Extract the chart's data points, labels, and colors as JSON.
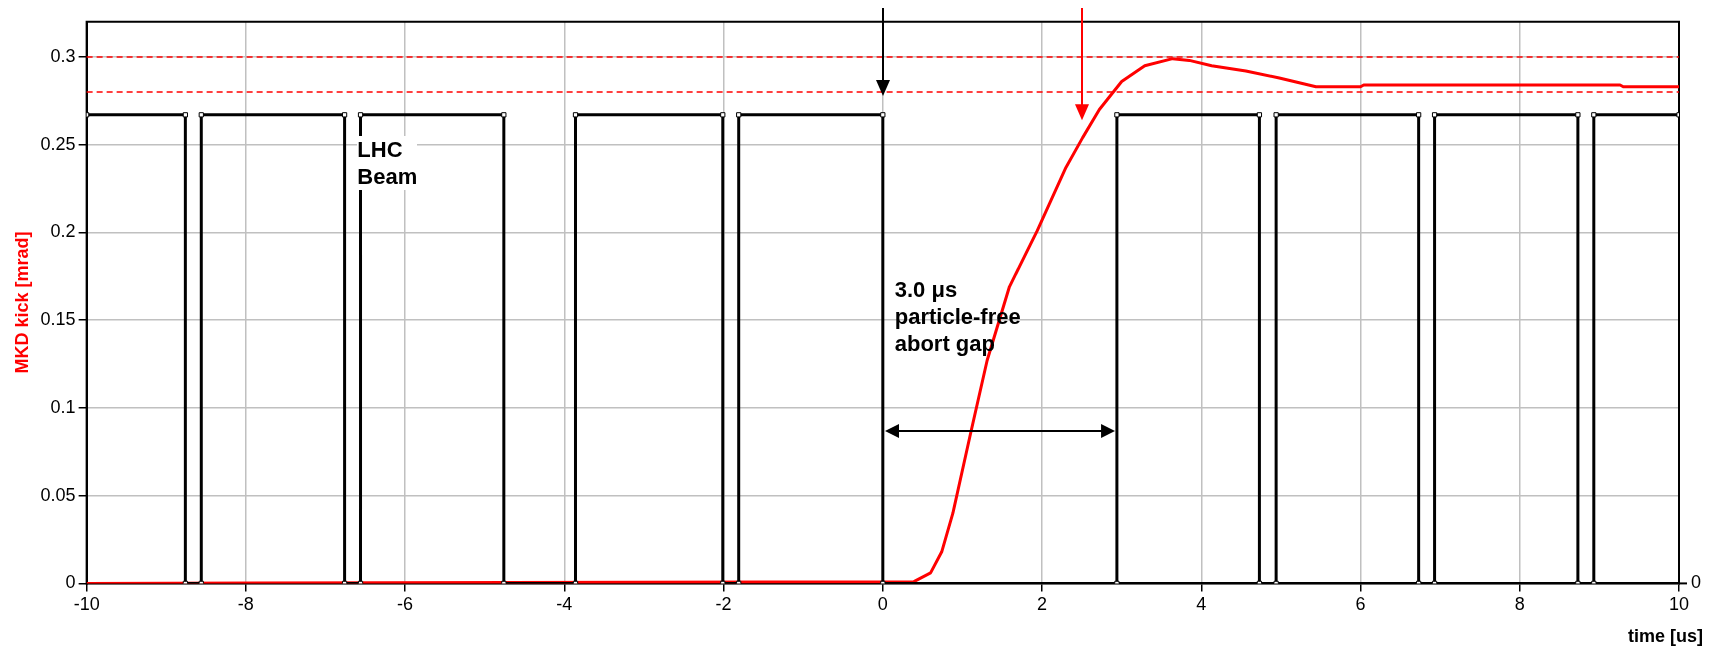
{
  "chart_data": {
    "type": "line",
    "xlabel": "time [us]",
    "ylabel": "MKD kick [mrad]",
    "xlim": [
      -10,
      10
    ],
    "xticks": [
      -10,
      -8,
      -6,
      -4,
      -2,
      0,
      2,
      4,
      6,
      8,
      10
    ],
    "ylim": [
      0,
      0.32
    ],
    "yticks": [
      0,
      0.05,
      0.1,
      0.15,
      0.2,
      0.25,
      0.3
    ],
    "grid": true,
    "legend": false,
    "ref_lines": [
      {
        "axis": "y",
        "value": 0.3,
        "color": "#ff0000",
        "line_style": "dashed"
      },
      {
        "axis": "y",
        "value": 0.28,
        "color": "#ff0000",
        "line_style": "dashed"
      }
    ],
    "annotations": [
      "LHC\nBeam",
      "3.0 μs\nparticle-free\nabort gap",
      "0"
    ],
    "series": [
      {
        "color": "#000000",
        "marker": "square",
        "x": [
          -10,
          -8.76,
          -8.76,
          -8.56,
          -8.56,
          -6.76,
          -6.76,
          -6.56,
          -6.56,
          -4.76,
          -4.76,
          -3.86,
          -3.86,
          -2.01,
          -2.01,
          -1.81,
          -1.81,
          0,
          0,
          2.94,
          2.94,
          4.73,
          4.73,
          4.94,
          4.94,
          6.73,
          6.73,
          6.93,
          6.93,
          8.73,
          8.73,
          8.93,
          8.93,
          10
        ],
        "values": [
          0.267,
          0.267,
          0,
          0,
          0.267,
          0.267,
          0,
          0,
          0.267,
          0.267,
          0,
          0,
          0.267,
          0.267,
          0,
          0,
          0.267,
          0.267,
          0,
          0,
          0.267,
          0.267,
          0,
          0,
          0.267,
          0.267,
          0,
          0,
          0.267,
          0.267,
          0,
          0,
          0.267,
          0.267
        ]
      },
      {
        "color": "#ff0000",
        "marker": "none",
        "x": [
          -10,
          0.39,
          0.6,
          0.74,
          0.88,
          1.1,
          1.31,
          1.59,
          1.94,
          2.3,
          2.51,
          2.72,
          3.0,
          3.29,
          3.64,
          3.85,
          4.13,
          4.56,
          4.98,
          5.44,
          6.0,
          6.04,
          9.26,
          9.3,
          10
        ],
        "values": [
          0,
          0.001,
          0.006,
          0.018,
          0.04,
          0.085,
          0.127,
          0.169,
          0.201,
          0.237,
          0.254,
          0.27,
          0.286,
          0.295,
          0.299,
          0.298,
          0.295,
          0.292,
          0.288,
          0.283,
          0.283,
          0.284,
          0.284,
          0.283,
          0.283
        ]
      }
    ]
  }
}
